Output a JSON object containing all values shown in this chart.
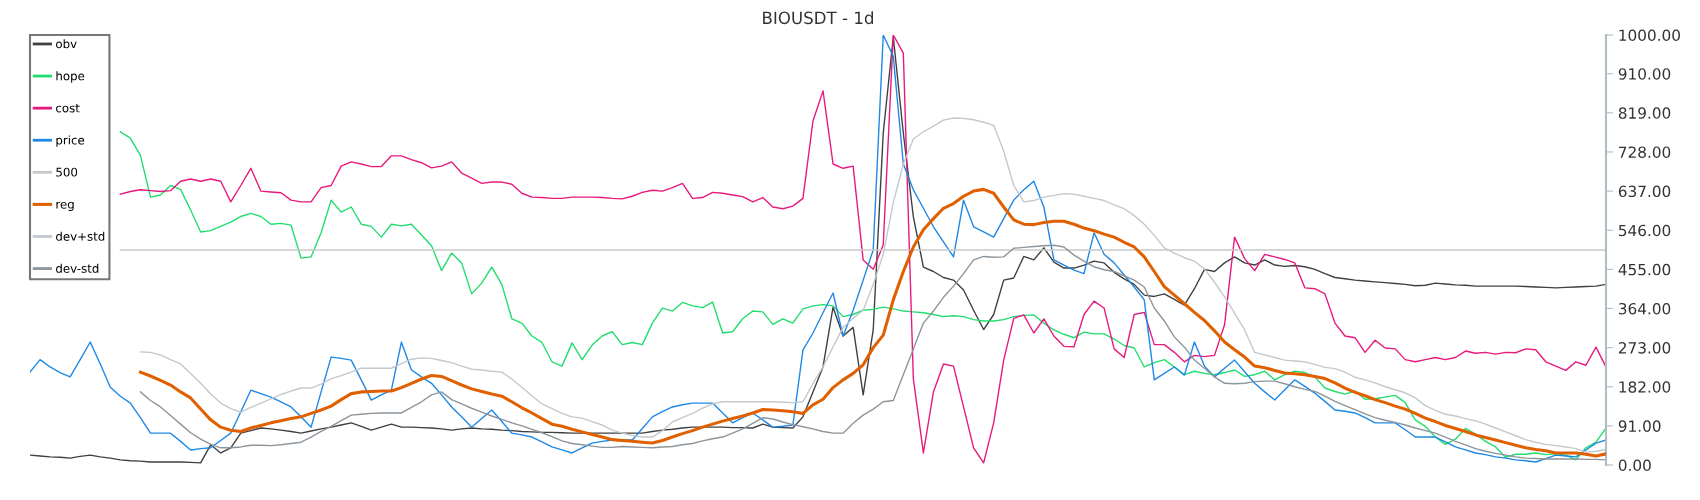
{
  "chart_data": {
    "type": "line",
    "title": "BIOUSDT - 1d",
    "categories": [
      null,
      null,
      null,
      null,
      null,
      null,
      null,
      null,
      null,
      null,
      null,
      null,
      null,
      null,
      null,
      null,
      null,
      null,
      null,
      null,
      null,
      null,
      null,
      null,
      null,
      null,
      null,
      null,
      null,
      null,
      null,
      null,
      null,
      null,
      null,
      null,
      null,
      null,
      null,
      null,
      null,
      null,
      null,
      null,
      null,
      null,
      null,
      null,
      null,
      null,
      null,
      null,
      null,
      null,
      null,
      null,
      null,
      null,
      null,
      null,
      null,
      null,
      null,
      null,
      null,
      null,
      null,
      null,
      null,
      null,
      null,
      null,
      null,
      null,
      null,
      null,
      null,
      null,
      null,
      null,
      null,
      null,
      null,
      null,
      null,
      null,
      null,
      null,
      null,
      null,
      null,
      null,
      null,
      null,
      null,
      null,
      null,
      null,
      null,
      null,
      null,
      null,
      null,
      null,
      null,
      null,
      null,
      null,
      null,
      null,
      null,
      null,
      null,
      null,
      null,
      null,
      null,
      null,
      null,
      null,
      null,
      null,
      null,
      null,
      null,
      null,
      null,
      null,
      null,
      null,
      null,
      null,
      null,
      null,
      null,
      null,
      null,
      null,
      null,
      null,
      null,
      null,
      null,
      null,
      null,
      null,
      null,
      null,
      null,
      null,
      null,
      null,
      null,
      null,
      null,
      null,
      null,
      null
    ],
    "ylim": [
      0,
      1000
    ],
    "yticks": [
      {
        "value": 0,
        "label": "0.00"
      },
      {
        "value": 91,
        "label": "91.00"
      },
      {
        "value": 182,
        "label": "182.00"
      },
      {
        "value": 273,
        "label": "273.00"
      },
      {
        "value": 364,
        "label": "364.00"
      },
      {
        "value": 455,
        "label": "455.00"
      },
      {
        "value": 546,
        "label": "546.00"
      },
      {
        "value": 637,
        "label": "637.00"
      },
      {
        "value": 728,
        "label": "728.00"
      },
      {
        "value": 819,
        "label": "819.00"
      },
      {
        "value": 910,
        "label": "910.00"
      },
      {
        "value": 1000,
        "label": "1000.00"
      }
    ],
    "tick_labels": "y",
    "grid": false,
    "legend": "top left",
    "marker": "none",
    "line_style": "solid",
    "series": [
      {
        "name": "obv",
        "color": "#404040",
        "values": [
          23,
          21,
          19,
          18,
          16,
          20,
          23,
          19,
          16,
          12,
          10,
          9,
          7,
          7,
          7,
          7,
          6,
          5,
          47,
          28,
          40,
          74,
          80,
          86,
          84,
          81,
          78,
          74,
          79,
          84,
          88,
          93,
          98,
          90,
          81,
          88,
          95,
          88,
          88,
          87,
          86,
          84,
          81,
          84,
          86,
          84,
          83,
          81,
          80,
          78,
          77,
          76,
          76,
          75,
          74,
          74,
          74,
          74,
          74,
          74,
          74,
          74,
          78,
          81,
          83,
          86,
          88,
          88,
          88,
          88,
          87,
          87,
          86,
          95,
          88,
          87,
          86,
          112,
          170,
          228,
          367,
          300,
          320,
          163,
          314,
          772,
          995,
          772,
          577,
          460,
          450,
          436,
          430,
          407,
          360,
          315,
          350,
          430,
          435,
          485,
          477,
          505,
          472,
          458,
          458,
          465,
          474,
          470,
          448,
          433,
          420,
          395,
          392,
          398,
          385,
          372,
          410,
          455,
          450,
          470,
          484,
          470,
          465,
          477,
          465,
          462,
          464,
          461,
          455,
          445,
          436,
          433,
          430,
          428,
          426,
          424,
          422,
          420,
          417,
          418,
          423,
          421,
          419,
          418,
          416,
          416,
          416,
          416,
          416,
          415,
          414,
          413,
          412,
          413,
          414,
          415,
          416,
          420
        ]
      },
      {
        "name": "hope",
        "color": "#22dd6e",
        "values": [
          null,
          null,
          null,
          null,
          null,
          null,
          null,
          null,
          null,
          775,
          760,
          720,
          623,
          628,
          650,
          641,
          593,
          542,
          545,
          555,
          565,
          578,
          585,
          578,
          560,
          562,
          558,
          481,
          484,
          540,
          616,
          588,
          600,
          560,
          555,
          530,
          560,
          556,
          560,
          535,
          510,
          452,
          493,
          470,
          398,
          423,
          460,
          420,
          340,
          330,
          300,
          285,
          240,
          230,
          284,
          245,
          279,
          300,
          310,
          280,
          285,
          280,
          330,
          365,
          358,
          378,
          370,
          366,
          379,
          307,
          310,
          340,
          358,
          356,
          327,
          340,
          330,
          363,
          370,
          373,
          370,
          345,
          350,
          360,
          362,
          367,
          363,
          358,
          356,
          354,
          350,
          345,
          347,
          345,
          338,
          335,
          335,
          338,
          345,
          348,
          349,
          330,
          314,
          304,
          296,
          309,
          305,
          305,
          293,
          278,
          272,
          228,
          238,
          245,
          228,
          210,
          218,
          213,
          210,
          215,
          221,
          206,
          210,
          218,
          198,
          210,
          218,
          215,
          205,
          179,
          171,
          165,
          172,
          153,
          154,
          158,
          162,
          145,
          105,
          90,
          65,
          48,
          60,
          85,
          72,
          55,
          42,
          18,
          25,
          25,
          28,
          24,
          26,
          23,
          12,
          40,
          53,
          86
        ]
      },
      {
        "name": "cost",
        "color": "#e8197d",
        "values": [
          null,
          null,
          null,
          null,
          null,
          null,
          null,
          null,
          null,
          630,
          636,
          640,
          638,
          636,
          638,
          660,
          665,
          660,
          665,
          660,
          612,
          650,
          690,
          637,
          635,
          633,
          616,
          612,
          612,
          645,
          650,
          695,
          705,
          700,
          694,
          694,
          719,
          719,
          710,
          703,
          691,
          695,
          705,
          679,
          667,
          655,
          658,
          658,
          653,
          632,
          623,
          622,
          620,
          620,
          623,
          623,
          623,
          622,
          620,
          619,
          625,
          634,
          639,
          637,
          645,
          655,
          620,
          622,
          634,
          632,
          628,
          624,
          612,
          622,
          600,
          596,
          602,
          620,
          800,
          870,
          700,
          690,
          695,
          477,
          455,
          512,
          1000,
          958,
          200,
          28,
          170,
          235,
          230,
          135,
          40,
          5,
          98,
          244,
          341,
          349,
          307,
          340,
          300,
          276,
          275,
          350,
          381,
          365,
          270,
          250,
          350,
          355,
          280,
          280,
          262,
          240,
          255,
          252,
          255,
          326,
          530,
          480,
          452,
          490,
          484,
          478,
          470,
          412,
          410,
          398,
          330,
          300,
          296,
          262,
          290,
          272,
          270,
          245,
          240,
          245,
          250,
          245,
          250,
          265,
          260,
          262,
          258,
          262,
          261,
          270,
          268,
          240,
          230,
          220,
          240,
          232,
          274,
          228
        ]
      },
      {
        "name": "price",
        "color": "#1e88e5",
        "values": [
          216,
          245,
          228,
          215,
          205,
          245,
          286,
          235,
          181,
          160,
          144,
          110,
          74,
          74,
          74,
          55,
          35,
          38,
          40,
          57,
          74,
          124,
          174,
          166,
          158,
          147,
          135,
          112,
          88,
          170,
          251,
          248,
          244,
          198,
          151,
          163,
          174,
          286,
          221,
          205,
          190,
          163,
          135,
          112,
          88,
          108,
          128,
          101,
          74,
          70,
          65,
          54,
          42,
          35,
          28,
          40,
          51,
          55,
          58,
          58,
          58,
          85,
          112,
          124,
          135,
          140,
          144,
          144,
          144,
          121,
          98,
          110,
          121,
          105,
          88,
          90,
          93,
          267,
          307,
          354,
          400,
          300,
          360,
          430,
          500,
          1000,
          950,
          700,
          640,
          597,
          554,
          519,
          484,
          616,
          554,
          542,
          530,
          573,
          616,
          640,
          660,
          600,
          477,
          465,
          453,
          445,
          540,
          490,
          470,
          442,
          414,
          384,
          198,
          213,
          228,
          209,
          286,
          230,
          205,
          225,
          244,
          217,
          190,
          170,
          151,
          175,
          198,
          183,
          167,
          148,
          128,
          125,
          121,
          110,
          98,
          98,
          98,
          82,
          65,
          65,
          65,
          54,
          42,
          35,
          28,
          24,
          19,
          16,
          12,
          10,
          7,
          15,
          23,
          21,
          19,
          35,
          51,
          58
        ]
      },
      {
        "name": "500",
        "color": "#c8c8c8",
        "values": [
          null,
          null,
          null,
          null,
          null,
          null,
          null,
          null,
          null,
          500,
          500,
          500,
          500,
          500,
          500,
          500,
          500,
          500,
          500,
          500,
          500,
          500,
          500,
          500,
          500,
          500,
          500,
          500,
          500,
          500,
          500,
          500,
          500,
          500,
          500,
          500,
          500,
          500,
          500,
          500,
          500,
          500,
          500,
          500,
          500,
          500,
          500,
          500,
          500,
          500,
          500,
          500,
          500,
          500,
          500,
          500,
          500,
          500,
          500,
          500,
          500,
          500,
          500,
          500,
          500,
          500,
          500,
          500,
          500,
          500,
          500,
          500,
          500,
          500,
          500,
          500,
          500,
          500,
          500,
          500,
          500,
          500,
          500,
          500,
          500,
          500,
          500,
          500,
          500,
          500,
          500,
          500,
          500,
          500,
          500,
          500,
          500,
          500,
          500,
          500,
          500,
          500,
          500,
          500,
          500,
          500,
          500,
          500,
          500,
          500,
          500,
          500,
          500,
          500,
          500,
          500,
          500,
          500,
          500,
          500,
          500,
          500,
          500,
          500,
          500,
          500,
          500,
          500,
          500,
          500,
          500,
          500,
          500,
          500,
          500,
          500,
          500,
          500,
          500,
          500,
          500,
          500,
          500,
          500,
          500,
          500,
          500,
          500,
          500,
          500,
          500,
          500,
          500,
          500,
          500,
          500,
          500,
          500
        ]
      },
      {
        "name": "reg",
        "color": "#e06000",
        "values": [
          null,
          null,
          null,
          null,
          null,
          null,
          null,
          null,
          null,
          null,
          null,
          216,
          207,
          197,
          186,
          170,
          156,
          130,
          105,
          88,
          81,
          78,
          86,
          92,
          98,
          103,
          108,
          112,
          120,
          128,
          137,
          152,
          166,
          170,
          171,
          172,
          172,
          180,
          190,
          200,
          208,
          206,
          196,
          186,
          177,
          171,
          165,
          160,
          147,
          133,
          121,
          108,
          95,
          90,
          83,
          77,
          71,
          65,
          59,
          57,
          55,
          53,
          51,
          57,
          65,
          73,
          80,
          88,
          95,
          102,
          108,
          114,
          121,
          129,
          128,
          126,
          124,
          120,
          140,
          153,
          180,
          198,
          213,
          233,
          273,
          302,
          384,
          450,
          507,
          547,
          573,
          597,
          608,
          625,
          637,
          641,
          632,
          600,
          570,
          560,
          559,
          564,
          567,
          567,
          560,
          551,
          545,
          537,
          530,
          518,
          507,
          484,
          450,
          415,
          395,
          375,
          355,
          336,
          312,
          286,
          268,
          251,
          230,
          226,
          220,
          214,
          212,
          210,
          206,
          201,
          191,
          179,
          169,
          161,
          152,
          145,
          137,
          130,
          120,
          109,
          101,
          92,
          85,
          78,
          70,
          64,
          58,
          52,
          46,
          40,
          36,
          33,
          28,
          28,
          28,
          25,
          21,
          26
        ]
      },
      {
        "name": "dev+std",
        "color": "#c2c8ce",
        "values": [
          null,
          null,
          null,
          null,
          null,
          null,
          null,
          null,
          null,
          null,
          null,
          263,
          262,
          256,
          245,
          235,
          213,
          190,
          165,
          144,
          131,
          123,
          134,
          144,
          154,
          164,
          172,
          179,
          179,
          188,
          201,
          208,
          216,
          225,
          225,
          225,
          225,
          236,
          246,
          249,
          248,
          243,
          238,
          230,
          223,
          221,
          218,
          216,
          200,
          181,
          161,
          142,
          131,
          120,
          112,
          109,
          101,
          93,
          81,
          74,
          69,
          65,
          65,
          80,
          100,
          110,
          120,
          132,
          142,
          147,
          147,
          147,
          147,
          147,
          147,
          146,
          145,
          147,
          190,
          228,
          275,
          320,
          341,
          360,
          420,
          490,
          610,
          700,
          758,
          775,
          788,
          802,
          807,
          806,
          803,
          797,
          790,
          730,
          650,
          612,
          615,
          623,
          627,
          631,
          630,
          625,
          620,
          615,
          605,
          596,
          580,
          560,
          534,
          505,
          493,
          482,
          474,
          456,
          425,
          391,
          353,
          314,
          262,
          256,
          250,
          244,
          242,
          240,
          234,
          227,
          224,
          216,
          204,
          198,
          191,
          182,
          175,
          168,
          156,
          138,
          127,
          118,
          114,
          108,
          103,
          95,
          86,
          77,
          68,
          59,
          53,
          48,
          45,
          42,
          38,
          30,
          32,
          36
        ]
      },
      {
        "name": "dev-std",
        "color": "#8c959c",
        "values": [
          null,
          null,
          null,
          null,
          null,
          null,
          null,
          null,
          null,
          null,
          null,
          170,
          150,
          135,
          115,
          95,
          75,
          60,
          48,
          40,
          40,
          42,
          46,
          46,
          45,
          47,
          50,
          53,
          65,
          78,
          90,
          103,
          116,
          118,
          120,
          121,
          121,
          121,
          134,
          147,
          163,
          170,
          152,
          142,
          132,
          123,
          114,
          106,
          98,
          91,
          83,
          75,
          66,
          56,
          50,
          47,
          44,
          41,
          41,
          43,
          42,
          41,
          40,
          42,
          43,
          47,
          50,
          56,
          61,
          65,
          74,
          84,
          97,
          110,
          107,
          100,
          94,
          89,
          84,
          78,
          74,
          74,
          97,
          116,
          130,
          147,
          150,
          210,
          270,
          330,
          358,
          390,
          416,
          445,
          477,
          485,
          483,
          484,
          504,
          506,
          508,
          510,
          511,
          507,
          488,
          474,
          461,
          454,
          450,
          440,
          430,
          414,
          365,
          335,
          298,
          274,
          244,
          225,
          205,
          190,
          189,
          190,
          194,
          195,
          195,
          189,
          182,
          176,
          171,
          160,
          148,
          138,
          129,
          119,
          110,
          104,
          99,
          93,
          86,
          80,
          74,
          65,
          55,
          47,
          38,
          32,
          27,
          23,
          19,
          16,
          15,
          14,
          14,
          14,
          14,
          13,
          13,
          12
        ]
      }
    ]
  }
}
